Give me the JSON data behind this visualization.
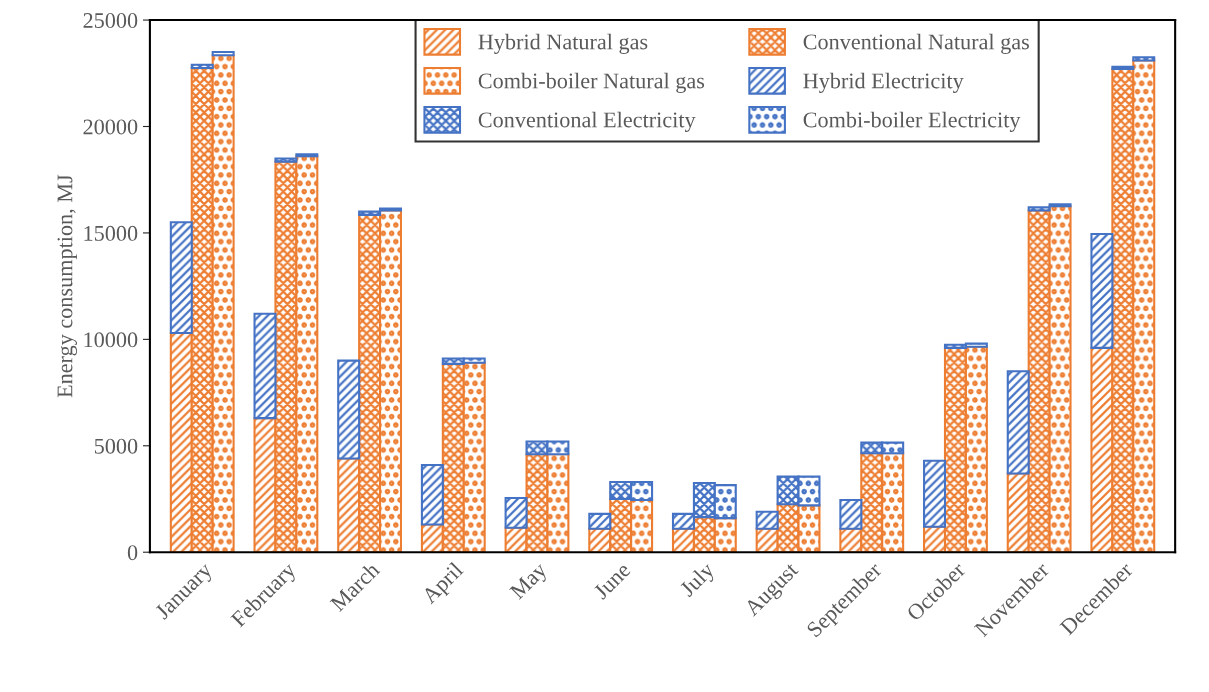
{
  "chart_data": {
    "type": "bar",
    "stacked": true,
    "ylabel": "Energy consumption, MJ",
    "ylim": [
      0,
      25000
    ],
    "yticks": [
      0,
      5000,
      10000,
      15000,
      20000,
      25000
    ],
    "legend": "top",
    "grid": false,
    "categories": [
      null,
      null,
      "January",
      null,
      null,
      null,
      "February",
      null,
      null,
      null,
      "March",
      null,
      null,
      null,
      "April",
      null,
      null,
      null,
      "May",
      null,
      null,
      null,
      "June",
      null,
      null,
      null,
      "July",
      null,
      null,
      null,
      "August",
      null,
      null,
      null,
      "September",
      null,
      null,
      null,
      "October",
      null,
      null,
      null,
      "November",
      null,
      null,
      null,
      "December",
      null,
      null
    ],
    "series": [
      {
        "name": "Hybrid Natural gas",
        "color": "#ed7d31",
        "values": [
          null,
          10300,
          null,
          null,
          null,
          6300,
          null,
          null,
          null,
          4400,
          null,
          null,
          null,
          1300,
          null,
          null,
          null,
          1150,
          null,
          null,
          null,
          1100,
          null,
          null,
          null,
          1100,
          null,
          null,
          null,
          1100,
          null,
          null,
          null,
          1100,
          null,
          null,
          null,
          1200,
          null,
          null,
          null,
          3700,
          null,
          null,
          null,
          9600,
          null,
          null,
          null
        ]
      },
      {
        "name": "Conventional Natural gas",
        "color": "#ed7d31",
        "values": [
          null,
          null,
          22750,
          null,
          null,
          null,
          18350,
          null,
          null,
          null,
          15850,
          null,
          null,
          null,
          8850,
          null,
          null,
          null,
          4600,
          null,
          null,
          null,
          2500,
          null,
          null,
          null,
          1650,
          null,
          null,
          null,
          2250,
          null,
          null,
          null,
          4650,
          null,
          null,
          null,
          9600,
          null,
          null,
          null,
          16050,
          null,
          null,
          null,
          22700,
          null,
          null
        ]
      },
      {
        "name": "Combi-boiler Natural gas",
        "color": "#ed7d31",
        "values": [
          null,
          null,
          null,
          23350,
          null,
          null,
          null,
          18600,
          null,
          null,
          null,
          16050,
          null,
          null,
          null,
          8900,
          null,
          null,
          null,
          4600,
          null,
          null,
          null,
          2450,
          null,
          null,
          null,
          1600,
          null,
          null,
          null,
          2200,
          null,
          null,
          null,
          4650,
          null,
          null,
          null,
          9650,
          null,
          null,
          null,
          16250,
          null,
          null,
          null,
          23100,
          null
        ]
      },
      {
        "name": "Hybrid Electricity",
        "color": "#4472c4",
        "values": [
          null,
          5200,
          null,
          null,
          null,
          4900,
          null,
          null,
          null,
          4600,
          null,
          null,
          null,
          2800,
          null,
          null,
          null,
          1400,
          null,
          null,
          null,
          700,
          null,
          null,
          null,
          700,
          null,
          null,
          null,
          800,
          null,
          null,
          null,
          1350,
          null,
          null,
          null,
          3100,
          null,
          null,
          null,
          4800,
          null,
          null,
          null,
          5350,
          null,
          null,
          null
        ]
      },
      {
        "name": "Conventional Electricity",
        "color": "#4472c4",
        "values": [
          null,
          null,
          150,
          null,
          null,
          null,
          150,
          null,
          null,
          null,
          150,
          null,
          null,
          null,
          250,
          null,
          null,
          null,
          600,
          null,
          null,
          null,
          800,
          null,
          null,
          null,
          1600,
          null,
          null,
          null,
          1300,
          null,
          null,
          null,
          500,
          null,
          null,
          null,
          150,
          null,
          null,
          null,
          150,
          null,
          null,
          null,
          100,
          null,
          null
        ]
      },
      {
        "name": "Combi-boiler Electricity",
        "color": "#4472c4",
        "values": [
          null,
          null,
          null,
          150,
          null,
          null,
          null,
          100,
          null,
          null,
          null,
          100,
          null,
          null,
          null,
          200,
          null,
          null,
          null,
          600,
          null,
          null,
          null,
          850,
          null,
          null,
          null,
          1550,
          null,
          null,
          null,
          1350,
          null,
          null,
          null,
          500,
          null,
          null,
          null,
          150,
          null,
          null,
          null,
          100,
          null,
          null,
          null,
          150,
          null
        ]
      }
    ]
  }
}
